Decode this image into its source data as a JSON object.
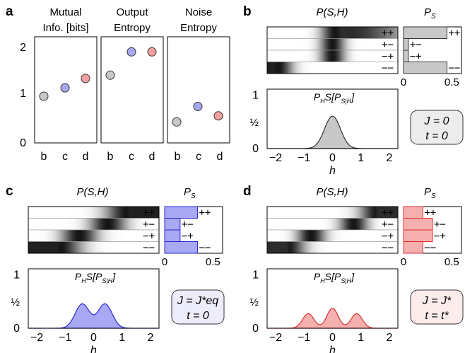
{
  "panel_a": {
    "letter": "a",
    "titles": [
      [
        "Mutual",
        "Info. [bits]"
      ],
      [
        "Output",
        "Entropy"
      ],
      [
        "Noise",
        "Entropy"
      ]
    ],
    "y_ticks": [
      "0",
      "1",
      "2"
    ],
    "x_ticks": [
      "b",
      "c",
      "d"
    ],
    "colors": {
      "b": "#c8c8c8",
      "c": "#a8a8f0",
      "d": "#f4a0a0"
    }
  },
  "panel_b": {
    "letter": "b",
    "heatmap_title": "P(S,H)",
    "bar_title": "P",
    "bar_title_sub": "S",
    "states": [
      "++",
      "+−",
      "−+",
      "−−"
    ],
    "bar_ticks": [
      "0",
      "0.5"
    ],
    "dist_title": "P",
    "dist_title_sub": "H",
    "dist_title_rest": "S[P",
    "dist_title_sub2": "S|H",
    "dist_title_close": "]",
    "y_ticks": [
      "0",
      "½",
      "1"
    ],
    "x_ticks": [
      "−2",
      "−1",
      "0",
      "1",
      "2"
    ],
    "xlabel": "h",
    "box_line1": "J = 0",
    "box_line2": "t = 0",
    "fill": "#c8c8c8",
    "stroke": "#333333"
  },
  "panel_c": {
    "letter": "c",
    "heatmap_title": "P(S,H)",
    "bar_title": "P",
    "bar_title_sub": "S",
    "states": [
      "++",
      "+−",
      "−+",
      "−−"
    ],
    "bar_ticks": [
      "0",
      "0.5"
    ],
    "dist_title": "P",
    "dist_title_sub": "H",
    "dist_title_rest": "S[P",
    "dist_title_sub2": "S|H",
    "dist_title_close": "]",
    "y_ticks": [
      "0",
      "½",
      "1"
    ],
    "x_ticks": [
      "−2",
      "−1",
      "0",
      "1",
      "2"
    ],
    "xlabel": "h",
    "box_line1": "J = J*eq",
    "box_line2": "t = 0",
    "fill": "#a8a8f5",
    "stroke": "#2a2ad0",
    "box_fill": "#ececfb"
  },
  "panel_d": {
    "letter": "d",
    "heatmap_title": "P(S,H)",
    "bar_title": "P",
    "bar_title_sub": "S",
    "states": [
      "++",
      "+−",
      "−+",
      "−−"
    ],
    "bar_ticks": [
      "0",
      "0.5"
    ],
    "dist_title": "P",
    "dist_title_sub": "H",
    "dist_title_rest": "S[P",
    "dist_title_sub2": "S|H",
    "dist_title_close": "]",
    "y_ticks": [
      "0",
      "½",
      "1"
    ],
    "x_ticks": [
      "−2",
      "−1",
      "0",
      "1",
      "2"
    ],
    "xlabel": "h",
    "box_line1": "J = J*",
    "box_line2": "t = t*",
    "fill": "#f7b0b0",
    "stroke": "#e03030",
    "box_fill": "#fdecec"
  },
  "chart_data": [
    {
      "type": "scatter",
      "panel": "a",
      "title": "Mutual Info. [bits]",
      "categories": [
        "b",
        "c",
        "d"
      ],
      "values": [
        1.0,
        1.18,
        1.38
      ],
      "ylim": [
        0,
        2
      ]
    },
    {
      "type": "scatter",
      "panel": "a",
      "title": "Output Entropy",
      "categories": [
        "b",
        "c",
        "d"
      ],
      "values": [
        1.45,
        1.95,
        1.95
      ],
      "ylim": [
        0,
        2
      ]
    },
    {
      "type": "scatter",
      "panel": "a",
      "title": "Noise Entropy",
      "categories": [
        "b",
        "c",
        "d"
      ],
      "values": [
        0.45,
        0.78,
        0.58
      ],
      "ylim": [
        0,
        2
      ]
    },
    {
      "type": "bar",
      "panel": "b",
      "title": "P_S",
      "categories": [
        "++",
        "+−",
        "−+",
        "−−"
      ],
      "values": [
        0.45,
        0.05,
        0.05,
        0.45
      ],
      "xlim": [
        0,
        0.6
      ]
    },
    {
      "type": "area",
      "panel": "b",
      "xlabel": "h",
      "xlim": [
        -2.3,
        2.3
      ],
      "ylim": [
        0,
        1.1
      ],
      "peaks": [
        [
          0,
          0.6,
          0.28
        ]
      ]
    },
    {
      "type": "bar",
      "panel": "c",
      "title": "P_S",
      "categories": [
        "++",
        "+−",
        "−+",
        "−−"
      ],
      "values": [
        0.34,
        0.16,
        0.16,
        0.34
      ],
      "xlim": [
        0,
        0.6
      ]
    },
    {
      "type": "area",
      "panel": "c",
      "xlabel": "h",
      "xlim": [
        -2.3,
        2.3
      ],
      "ylim": [
        0,
        1.1
      ],
      "peaks": [
        [
          -0.4,
          0.45,
          0.25
        ],
        [
          0.4,
          0.45,
          0.25
        ]
      ]
    },
    {
      "type": "bar",
      "panel": "d",
      "title": "P_S",
      "categories": [
        "++",
        "+−",
        "−+",
        "−−"
      ],
      "values": [
        0.2,
        0.3,
        0.3,
        0.2
      ],
      "xlim": [
        0,
        0.6
      ]
    },
    {
      "type": "area",
      "panel": "d",
      "xlabel": "h",
      "xlim": [
        -2.3,
        2.3
      ],
      "ylim": [
        0,
        1.1
      ],
      "peaks": [
        [
          -0.85,
          0.27,
          0.2
        ],
        [
          0,
          0.37,
          0.2
        ],
        [
          0.85,
          0.27,
          0.2
        ]
      ]
    }
  ]
}
